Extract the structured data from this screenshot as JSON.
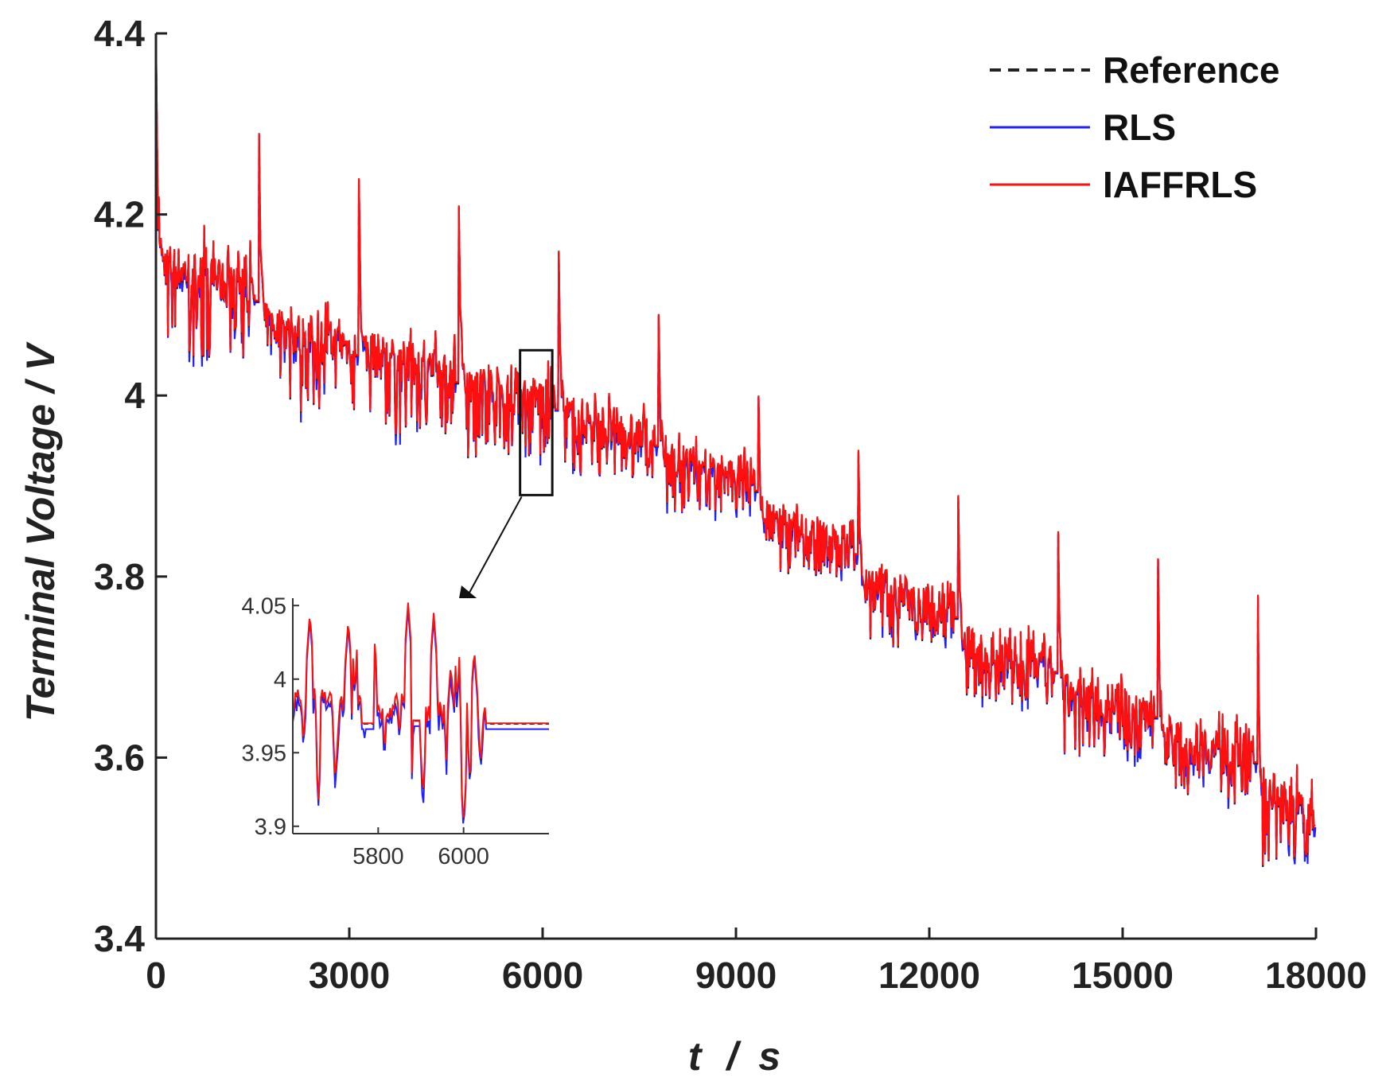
{
  "chart_data": {
    "type": "line",
    "title": "",
    "xlabel_main": "t",
    "xlabel_sep": "/",
    "xlabel_unit": "s",
    "ylabel": "Terminal Voltage / V",
    "xlim": [
      0,
      18000
    ],
    "ylim": [
      3.4,
      4.4
    ],
    "xticks": [
      "0",
      "3000",
      "6000",
      "9000",
      "12000",
      "15000",
      "18000"
    ],
    "xtick_values": [
      0,
      3000,
      6000,
      9000,
      12000,
      15000,
      18000
    ],
    "yticks": [
      "3.4",
      "3.6",
      "3.8",
      "4",
      "4.2",
      "4.4"
    ],
    "ytick_values": [
      3.4,
      3.6,
      3.8,
      4.0,
      4.2,
      4.4
    ],
    "grid": false,
    "legend_position": "top-right",
    "series": [
      {
        "name": "Reference",
        "color": "#222222",
        "style": "dashed"
      },
      {
        "name": "RLS",
        "color": "#2020ff",
        "style": "solid"
      },
      {
        "name": "IAFFRLS",
        "color": "#ff1010",
        "style": "solid"
      }
    ],
    "pulse_cycles": {
      "start_times_s": [
        0,
        1600,
        3150,
        4700,
        6250,
        7800,
        9350,
        10900,
        12450,
        14000,
        15550,
        17100
      ],
      "peak_voltage": [
        4.4,
        4.29,
        4.24,
        4.21,
        4.16,
        4.09,
        4.0,
        3.94,
        3.89,
        3.85,
        3.82,
        3.78
      ],
      "mean_voltage_start": [
        4.15,
        4.08,
        4.05,
        4.02,
        3.98,
        3.93,
        3.86,
        3.79,
        3.72,
        3.67,
        3.62,
        3.57
      ],
      "mean_voltage_end": [
        4.11,
        4.05,
        4.02,
        3.99,
        3.95,
        3.9,
        3.83,
        3.76,
        3.7,
        3.65,
        3.6,
        3.53
      ],
      "min_voltage": [
        4.04,
        3.98,
        3.95,
        3.93,
        3.91,
        3.87,
        3.8,
        3.72,
        3.66,
        3.6,
        3.55,
        3.48
      ]
    },
    "zoom_box": {
      "x_range": [
        5650,
        6150
      ],
      "y_range": [
        3.89,
        4.05
      ]
    },
    "inset": {
      "xlim": [
        5600,
        6200
      ],
      "ylim": [
        3.895,
        4.055
      ],
      "xticks": [
        "5800",
        "6000"
      ],
      "xtick_values": [
        5800,
        6000
      ],
      "yticks": [
        "3.9",
        "3.95",
        "4",
        "4.05"
      ],
      "ytick_values": [
        3.9,
        3.95,
        4.0,
        4.05
      ],
      "final_level_rls": 3.966,
      "final_level_iaffrls": 3.97
    }
  }
}
